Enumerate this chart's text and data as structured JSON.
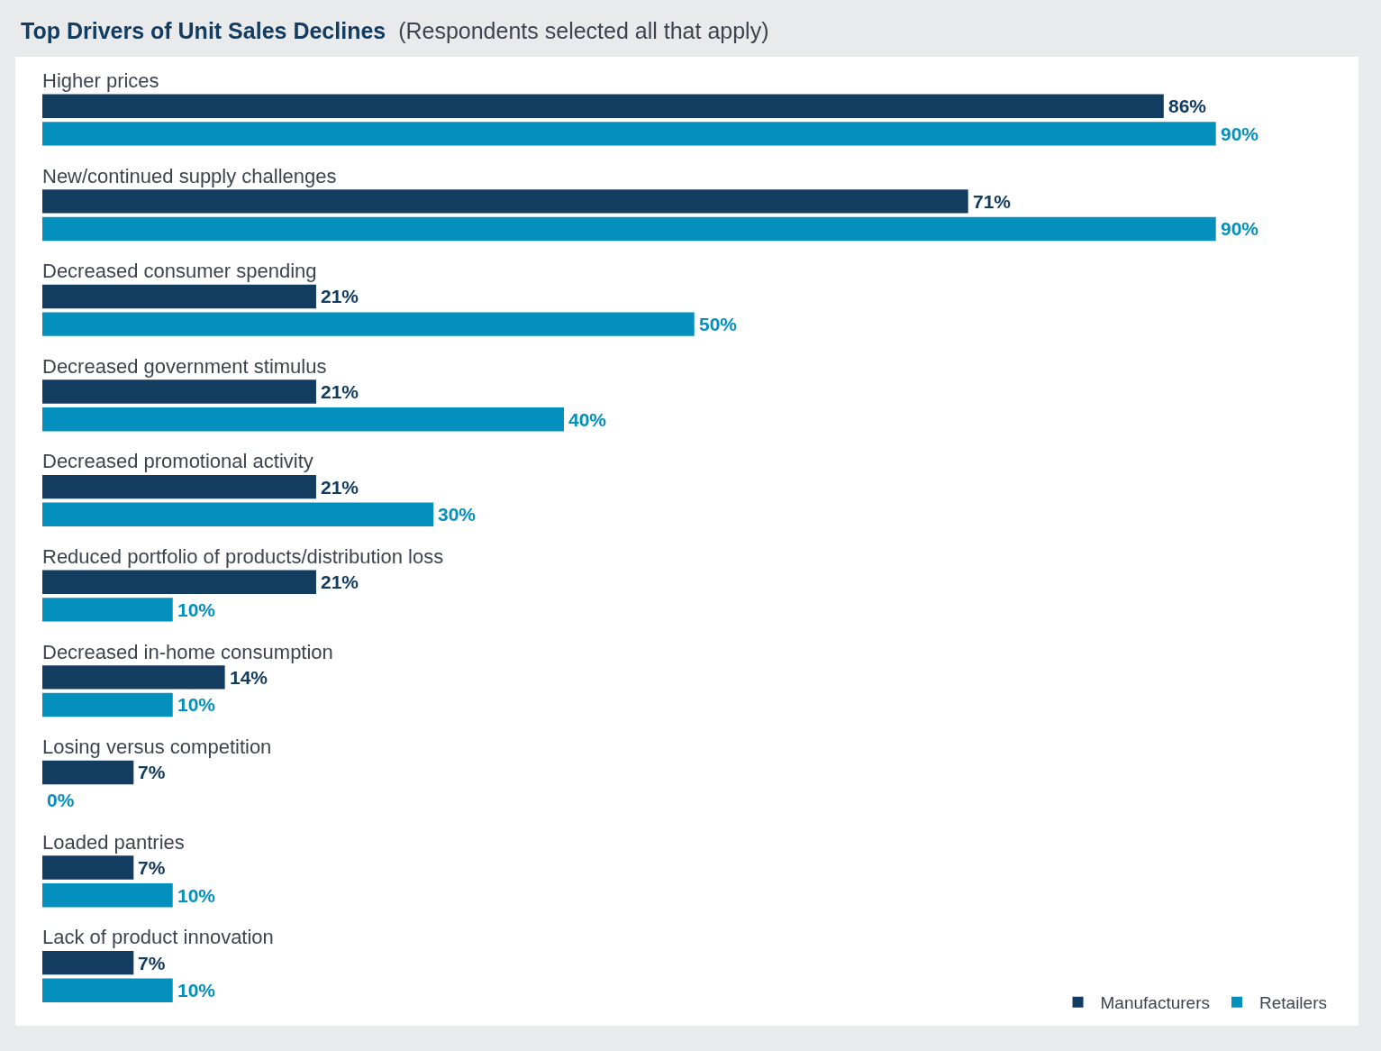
{
  "chart_data": {
    "type": "bar",
    "orientation": "horizontal",
    "title": "Top Drivers of Unit Sales Declines",
    "subtitle": "(Respondents selected all that apply)",
    "categories": [
      "Higher prices",
      "New/continued supply challenges",
      "Decreased consumer spending",
      "Decreased government stimulus",
      "Decreased promotional activity",
      "Reduced portfolio of products/distribution loss",
      "Decreased in-home consumption",
      "Losing versus competition",
      "Loaded pantries",
      "Lack of product innovation"
    ],
    "series": [
      {
        "name": "Manufacturers",
        "color": "#133c61",
        "values": [
          86,
          71,
          21,
          21,
          21,
          21,
          14,
          7,
          7,
          7
        ],
        "value_labels": [
          "86%",
          "71%",
          "21%",
          "21%",
          "21%",
          "21%",
          "14%",
          "7%",
          "7%",
          "7%"
        ]
      },
      {
        "name": "Retailers",
        "color": "#0390bd",
        "values": [
          90,
          90,
          50,
          40,
          30,
          10,
          10,
          0,
          10,
          10
        ],
        "value_labels": [
          "90%",
          "90%",
          "50%",
          "40%",
          "30%",
          "10%",
          "10%",
          "0%",
          "10%",
          "10%"
        ]
      }
    ],
    "legend": "bottom right"
  }
}
